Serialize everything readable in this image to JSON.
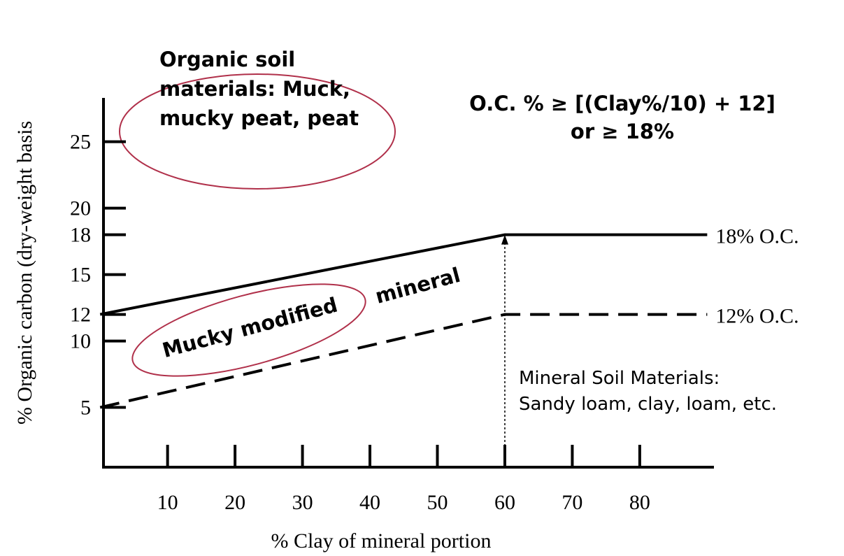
{
  "chart_data": {
    "type": "line",
    "x_label": "% Clay of mineral portion",
    "y_label": "% Organic carbon (dry-weight basis",
    "xlim": [
      0.5,
      91
    ],
    "ylim": [
      0.5,
      28.3
    ],
    "xticks": [
      10,
      20,
      30,
      40,
      50,
      60,
      70,
      80
    ],
    "yticks": [
      5,
      10,
      12,
      15,
      18,
      20,
      25
    ],
    "series": [
      {
        "name": "18% O.C.",
        "color": "#000000",
        "style": "solid",
        "x": [
          0,
          60,
          90
        ],
        "values": [
          12,
          18,
          18
        ]
      },
      {
        "name": "12% O.C.",
        "color": "#000000",
        "style": "dashed",
        "x": [
          0,
          60,
          90
        ],
        "values": [
          5,
          12,
          12
        ]
      }
    ],
    "annotations": [
      [
        "Organic soil",
        "materials: Muck,",
        "mucky peat, peat"
      ],
      [
        "O.C. % ≥ [(Clay%/10) + 12]",
        "or ≥ 18%"
      ],
      [
        "Mucky modified"
      ],
      [
        "mineral"
      ],
      [
        "Mineral Soil Materials:",
        "Sandy loam, clay, loam, etc."
      ]
    ]
  }
}
